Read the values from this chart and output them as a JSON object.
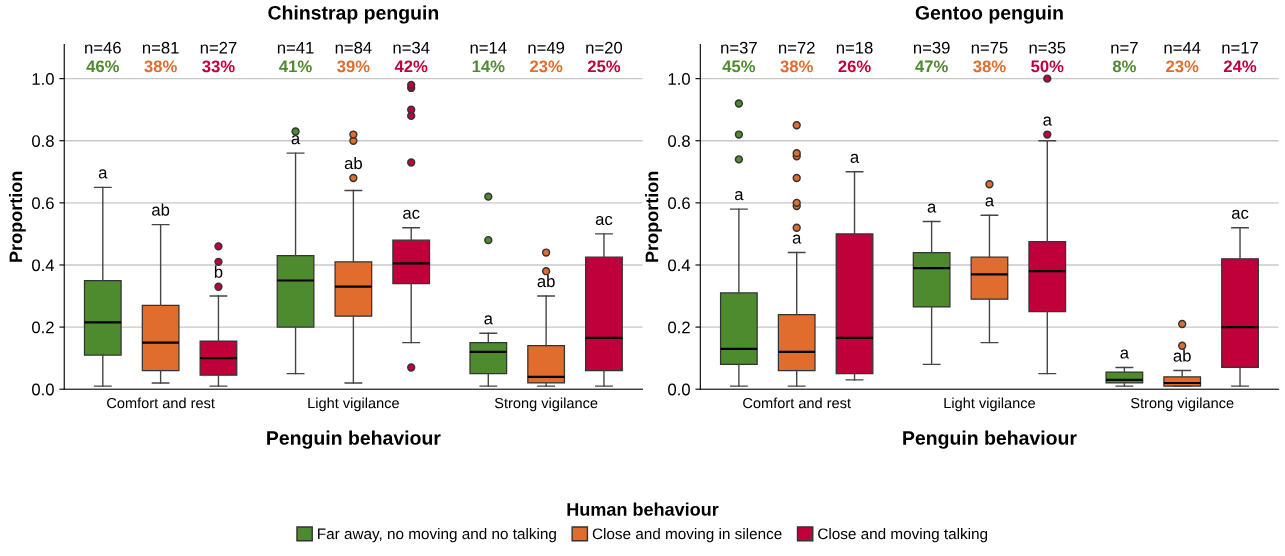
{
  "chart_data": [
    {
      "type": "box",
      "title": "Chinstrap penguin",
      "xlabel": "Penguin behaviour",
      "ylabel": "Proportion",
      "legend_title": "Human behaviour",
      "legend": "bottom",
      "grid": "y",
      "categories": [
        "Comfort and rest",
        "Light vigilance",
        "Strong vigilance"
      ],
      "ylim": [
        0,
        1.11
      ],
      "yticks": [
        {
          "value": 0,
          "label": "0.0"
        },
        {
          "value": 0.2,
          "label": "0.2"
        },
        {
          "value": 0.4,
          "label": "0.4"
        },
        {
          "value": 0.6,
          "label": "0.6"
        },
        {
          "value": 0.8,
          "label": "0.8"
        },
        {
          "value": 1,
          "label": "1.0"
        }
      ],
      "annotations": [
        "n=46",
        "n=81",
        "n=27",
        "n=41",
        "n=84",
        "n=34",
        "n=14",
        "n=49",
        "n=20",
        "46%",
        "38%",
        "33%",
        "41%",
        "39%",
        "42%",
        "14%",
        "23%",
        "25%"
      ],
      "series": [
        {
          "name": "Far away, no moving and no talking",
          "color": "#4e8a2e",
          "value_labels": [
            "a",
            "a",
            "a"
          ],
          "boxes": [
            {
              "low": 0.01,
              "q1": 0.11,
              "median": 0.215,
              "q3": 0.35,
              "high": 0.65
            },
            {
              "low": 0.05,
              "q1": 0.2,
              "median": 0.35,
              "q3": 0.43,
              "high": 0.76,
              "outliers": [
                0.83
              ]
            },
            {
              "low": 0.01,
              "q1": 0.05,
              "median": 0.12,
              "q3": 0.15,
              "high": 0.18,
              "outliers": [
                0.48,
                0.62
              ]
            }
          ]
        },
        {
          "name": "Close and moving in silence",
          "color": "#e06c2e",
          "value_labels": [
            "ab",
            "ab",
            "ab"
          ],
          "boxes": [
            {
              "low": 0.02,
              "q1": 0.06,
              "median": 0.15,
              "q3": 0.27,
              "high": 0.53
            },
            {
              "low": 0.02,
              "q1": 0.235,
              "median": 0.33,
              "q3": 0.41,
              "high": 0.64,
              "outliers": [
                0.68,
                0.8,
                0.82
              ]
            },
            {
              "low": 0.01,
              "q1": 0.02,
              "median": 0.04,
              "q3": 0.14,
              "high": 0.3,
              "outliers": [
                0.38,
                0.44
              ]
            }
          ]
        },
        {
          "name": "Close and moving talking",
          "color": "#c0003a",
          "value_labels": [
            "b",
            "ac",
            "ac"
          ],
          "boxes": [
            {
              "low": 0.01,
              "q1": 0.045,
              "median": 0.1,
              "q3": 0.155,
              "high": 0.3,
              "outliers": [
                0.33,
                0.41,
                0.46
              ]
            },
            {
              "low": 0.15,
              "q1": 0.34,
              "median": 0.405,
              "q3": 0.48,
              "high": 0.52,
              "outliers": [
                0.07,
                0.73,
                0.88,
                0.9,
                0.97,
                0.98
              ]
            },
            {
              "low": 0.01,
              "q1": 0.06,
              "median": 0.165,
              "q3": 0.425,
              "high": 0.5
            }
          ]
        }
      ]
    },
    {
      "type": "box",
      "title": "Gentoo penguin",
      "xlabel": "Penguin behaviour",
      "ylabel": "Proportion",
      "grid": "y",
      "categories": [
        "Comfort and rest",
        "Light vigilance",
        "Strong vigilance"
      ],
      "ylim": [
        0,
        1.11
      ],
      "yticks": [
        {
          "value": 0,
          "label": "0.0"
        },
        {
          "value": 0.2,
          "label": "0.2"
        },
        {
          "value": 0.4,
          "label": "0.4"
        },
        {
          "value": 0.6,
          "label": "0.6"
        },
        {
          "value": 0.8,
          "label": "0.8"
        },
        {
          "value": 1,
          "label": "1.0"
        }
      ],
      "annotations": [
        "n=37",
        "n=72",
        "n=18",
        "n=39",
        "n=75",
        "n=35",
        "n=7",
        "n=44",
        "n=17",
        "45%",
        "38%",
        "26%",
        "47%",
        "38%",
        "50%",
        "8%",
        "23%",
        "24%"
      ],
      "series": [
        {
          "color": "#4e8a2e",
          "value_labels": [
            "a",
            "a",
            "a"
          ],
          "boxes": [
            {
              "low": 0.01,
              "q1": 0.08,
              "median": 0.13,
              "q3": 0.31,
              "high": 0.58,
              "outliers": [
                0.74,
                0.82,
                0.92
              ]
            },
            {
              "low": 0.08,
              "q1": 0.265,
              "median": 0.39,
              "q3": 0.44,
              "high": 0.54
            },
            {
              "low": 0.01,
              "q1": 0.02,
              "median": 0.03,
              "q3": 0.055,
              "high": 0.07
            }
          ]
        },
        {
          "color": "#e06c2e",
          "value_labels": [
            "a",
            "a",
            "ab"
          ],
          "boxes": [
            {
              "low": 0.01,
              "q1": 0.06,
              "median": 0.12,
              "q3": 0.24,
              "high": 0.44,
              "outliers": [
                0.52,
                0.59,
                0.6,
                0.68,
                0.75,
                0.76,
                0.85
              ]
            },
            {
              "low": 0.15,
              "q1": 0.29,
              "median": 0.37,
              "q3": 0.425,
              "high": 0.56,
              "outliers": [
                0.66
              ]
            },
            {
              "low": 0.01,
              "q1": 0.01,
              "median": 0.02,
              "q3": 0.04,
              "high": 0.06,
              "outliers": [
                0.14,
                0.21
              ]
            }
          ]
        },
        {
          "color": "#c0003a",
          "value_labels": [
            "a",
            "a",
            "ac"
          ],
          "boxes": [
            {
              "low": 0.03,
              "q1": 0.05,
              "median": 0.165,
              "q3": 0.5,
              "high": 0.7
            },
            {
              "low": 0.05,
              "q1": 0.25,
              "median": 0.38,
              "q3": 0.475,
              "high": 0.8,
              "outliers": [
                0.82,
                1.0
              ]
            },
            {
              "low": 0.01,
              "q1": 0.07,
              "median": 0.2,
              "q3": 0.42,
              "high": 0.52
            }
          ]
        }
      ]
    }
  ]
}
